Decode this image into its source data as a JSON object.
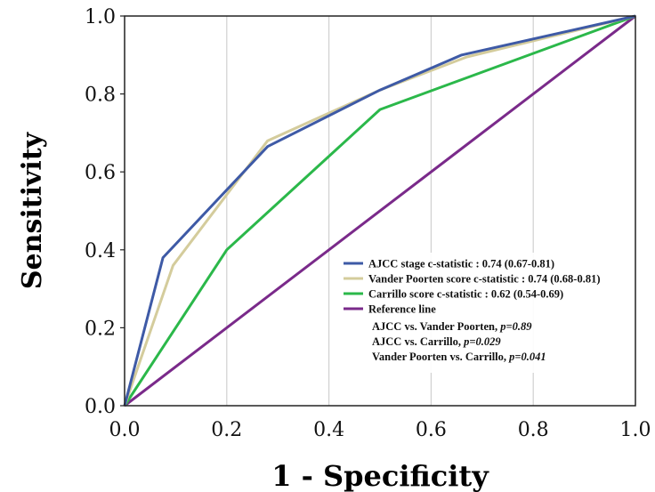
{
  "chart_data": {
    "type": "line",
    "xlabel": "1 - Specificity",
    "ylabel": "Sensitivity",
    "xlim": [
      0,
      1
    ],
    "ylim": [
      0,
      1
    ],
    "x_ticks": [
      "0.0",
      "0.2",
      "0.4",
      "0.6",
      "0.8",
      "1.0"
    ],
    "y_ticks": [
      "0.0",
      "0.2",
      "0.4",
      "0.6",
      "0.8",
      "1.0"
    ],
    "grid": "vertical",
    "legend_position": "bottom-right",
    "series": [
      {
        "name": "AJCC stage c-statistic : 0.74 (0.67-0.81)",
        "color": "#3e5aa6",
        "points": [
          [
            0,
            0
          ],
          [
            0.075,
            0.38
          ],
          [
            0.28,
            0.665
          ],
          [
            0.5,
            0.81
          ],
          [
            0.66,
            0.9
          ],
          [
            1,
            1
          ]
        ]
      },
      {
        "name": "Vander Poorten score c-statistic : 0.74 (0.68-0.81)",
        "color": "#d4cc9c",
        "points": [
          [
            0,
            0
          ],
          [
            0.095,
            0.36
          ],
          [
            0.28,
            0.68
          ],
          [
            0.5,
            0.81
          ],
          [
            0.67,
            0.895
          ],
          [
            1,
            1
          ]
        ]
      },
      {
        "name": "Carrillo score c-statistic : 0.62 (0.54-0.69)",
        "color": "#2bb84a",
        "points": [
          [
            0,
            0
          ],
          [
            0.2,
            0.4
          ],
          [
            0.5,
            0.76
          ],
          [
            1,
            1
          ]
        ]
      },
      {
        "name": "Reference line",
        "color": "#7a2a8a",
        "points": [
          [
            0,
            0
          ],
          [
            1,
            1
          ]
        ]
      }
    ],
    "annotations": [
      {
        "text": "AJCC vs. Vander Poorten, ",
        "p": "p=0.89"
      },
      {
        "text": "AJCC vs. Carrillo, ",
        "p": "p=0.029"
      },
      {
        "text": "Vander Poorten vs. Carrillo, ",
        "p": "p=0.041"
      }
    ]
  }
}
